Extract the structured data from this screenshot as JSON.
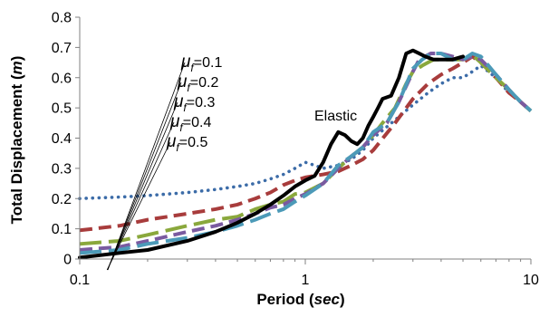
{
  "chart_data": {
    "type": "line",
    "x_scale": "log",
    "xlim": [
      0.1,
      10
    ],
    "ylim": [
      0,
      0.8
    ],
    "grid": false,
    "legend": "none",
    "xlabel_parts": [
      {
        "text": "Period (",
        "italic": false
      },
      {
        "text": "sec",
        "italic": true
      },
      {
        "text": ")",
        "italic": false
      }
    ],
    "ylabel_parts": [
      {
        "text": "Total Displacement (",
        "italic": false
      },
      {
        "text": "m",
        "italic": true
      },
      {
        "text": ")",
        "italic": false
      }
    ],
    "x_ticks": [
      {
        "value": 0.1,
        "label": "0.1"
      },
      {
        "value": 1,
        "label": "1"
      },
      {
        "value": 10,
        "label": "10"
      }
    ],
    "y_ticks": [
      {
        "value": 0,
        "label": "0"
      },
      {
        "value": 0.1,
        "label": "0.1"
      },
      {
        "value": 0.2,
        "label": "0.2"
      },
      {
        "value": 0.3,
        "label": "0.3"
      },
      {
        "value": 0.4,
        "label": "0.4"
      },
      {
        "value": 0.5,
        "label": "0.5"
      },
      {
        "value": 0.6,
        "label": "0.6"
      },
      {
        "value": 0.7,
        "label": "0.7"
      },
      {
        "value": 0.8,
        "label": "0.8"
      }
    ],
    "annotations": [
      {
        "text": "Elastic",
        "series": "Elastic"
      }
    ],
    "mu_labels": [
      {
        "symbol": "μ",
        "sub": "f",
        "value": "=0.1",
        "series": "mu_f=0.1"
      },
      {
        "symbol": "μ",
        "sub": "f",
        "value": "=0.2",
        "series": "mu_f=0.2"
      },
      {
        "symbol": "μ",
        "sub": "f",
        "value": "=0.3",
        "series": "mu_f=0.3"
      },
      {
        "symbol": "μ",
        "sub": "f",
        "value": "=0.4",
        "series": "mu_f=0.4"
      },
      {
        "symbol": "μ",
        "sub": "f",
        "value": "=0.5",
        "series": "mu_f=0.5"
      }
    ],
    "series": [
      {
        "id": "mu_f=0.1",
        "color": "#3C6CA8",
        "style": "dotted",
        "x": [
          0.1,
          0.15,
          0.2,
          0.3,
          0.4,
          0.5,
          0.6,
          0.7,
          0.8,
          0.9,
          1.0,
          1.1,
          1.2,
          1.4,
          1.6,
          1.8,
          2.0,
          2.5,
          3.0,
          3.5,
          4.0,
          4.5,
          5.0,
          5.5,
          6.0,
          7.0,
          8.0,
          9.0,
          10.0
        ],
        "y": [
          0.2,
          0.205,
          0.21,
          0.22,
          0.23,
          0.24,
          0.25,
          0.265,
          0.28,
          0.3,
          0.32,
          0.31,
          0.3,
          0.31,
          0.33,
          0.36,
          0.4,
          0.46,
          0.51,
          0.55,
          0.58,
          0.6,
          0.6,
          0.62,
          0.64,
          0.6,
          0.55,
          0.52,
          0.49
        ]
      },
      {
        "id": "mu_f=0.2",
        "color": "#A83C3C",
        "style": "dashed",
        "x": [
          0.1,
          0.15,
          0.2,
          0.3,
          0.4,
          0.5,
          0.6,
          0.7,
          0.8,
          0.9,
          1.0,
          1.2,
          1.4,
          1.6,
          1.8,
          2.0,
          2.5,
          3.0,
          3.5,
          4.0,
          4.5,
          5.0,
          5.5,
          6.0,
          7.0,
          8.0,
          9.0,
          10.0
        ],
        "y": [
          0.095,
          0.11,
          0.13,
          0.15,
          0.165,
          0.18,
          0.2,
          0.22,
          0.245,
          0.26,
          0.27,
          0.28,
          0.29,
          0.31,
          0.33,
          0.36,
          0.45,
          0.53,
          0.58,
          0.61,
          0.63,
          0.65,
          0.67,
          0.65,
          0.6,
          0.55,
          0.52,
          0.49
        ]
      },
      {
        "id": "mu_f=0.3",
        "color": "#8AA83C",
        "style": "longdash",
        "x": [
          0.1,
          0.15,
          0.2,
          0.3,
          0.4,
          0.5,
          0.6,
          0.7,
          0.8,
          0.9,
          1.0,
          1.2,
          1.4,
          1.6,
          1.8,
          2.0,
          2.2,
          2.5,
          2.8,
          3.0,
          3.3,
          3.7,
          4.2,
          5.0,
          5.6,
          6.0,
          7.0,
          8.0,
          9.0,
          10.0
        ],
        "y": [
          0.05,
          0.06,
          0.08,
          0.11,
          0.13,
          0.14,
          0.165,
          0.18,
          0.19,
          0.215,
          0.22,
          0.25,
          0.3,
          0.34,
          0.37,
          0.41,
          0.45,
          0.5,
          0.58,
          0.62,
          0.64,
          0.66,
          0.66,
          0.66,
          0.67,
          0.65,
          0.6,
          0.56,
          0.52,
          0.49
        ]
      },
      {
        "id": "mu_f=0.4",
        "color": "#7A5AA0",
        "style": "dashed",
        "x": [
          0.1,
          0.15,
          0.2,
          0.3,
          0.4,
          0.5,
          0.6,
          0.7,
          0.8,
          0.9,
          1.0,
          1.2,
          1.4,
          1.6,
          1.8,
          2.0,
          2.3,
          2.6,
          3.0,
          3.2,
          3.6,
          4.0,
          4.5,
          5.0,
          5.5,
          6.0,
          7.0,
          8.0,
          9.0,
          10.0
        ],
        "y": [
          0.03,
          0.04,
          0.06,
          0.09,
          0.11,
          0.13,
          0.15,
          0.17,
          0.18,
          0.2,
          0.215,
          0.25,
          0.3,
          0.34,
          0.37,
          0.41,
          0.45,
          0.52,
          0.62,
          0.66,
          0.68,
          0.68,
          0.67,
          0.66,
          0.67,
          0.66,
          0.61,
          0.56,
          0.52,
          0.49
        ]
      },
      {
        "id": "mu_f=0.5",
        "color": "#4C9AB8",
        "style": "longdash",
        "x": [
          0.1,
          0.15,
          0.2,
          0.3,
          0.4,
          0.5,
          0.6,
          0.7,
          0.8,
          0.9,
          1.0,
          1.2,
          1.4,
          1.6,
          1.8,
          2.0,
          2.3,
          2.6,
          3.0,
          3.3,
          3.6,
          4.0,
          4.5,
          5.0,
          5.5,
          6.0,
          7.0,
          8.0,
          9.0,
          10.0
        ],
        "y": [
          0.02,
          0.03,
          0.05,
          0.07,
          0.09,
          0.11,
          0.13,
          0.15,
          0.165,
          0.19,
          0.21,
          0.25,
          0.31,
          0.34,
          0.37,
          0.42,
          0.45,
          0.52,
          0.63,
          0.66,
          0.68,
          0.68,
          0.66,
          0.66,
          0.68,
          0.67,
          0.61,
          0.56,
          0.52,
          0.49
        ]
      },
      {
        "id": "Elastic",
        "color": "#000000",
        "style": "solid",
        "x": [
          0.1,
          0.15,
          0.2,
          0.3,
          0.4,
          0.5,
          0.6,
          0.7,
          0.8,
          0.9,
          1.0,
          1.1,
          1.2,
          1.3,
          1.4,
          1.5,
          1.6,
          1.7,
          1.8,
          1.9,
          2.0,
          2.1,
          2.2,
          2.4,
          2.6,
          2.8,
          3.0,
          3.2,
          3.4,
          3.7,
          4.0,
          4.5,
          5.0
        ],
        "y": [
          0.005,
          0.02,
          0.03,
          0.06,
          0.09,
          0.12,
          0.15,
          0.18,
          0.21,
          0.24,
          0.26,
          0.275,
          0.32,
          0.38,
          0.42,
          0.41,
          0.39,
          0.38,
          0.4,
          0.44,
          0.47,
          0.5,
          0.53,
          0.54,
          0.6,
          0.68,
          0.69,
          0.68,
          0.67,
          0.66,
          0.66,
          0.66,
          0.67
        ]
      }
    ]
  }
}
